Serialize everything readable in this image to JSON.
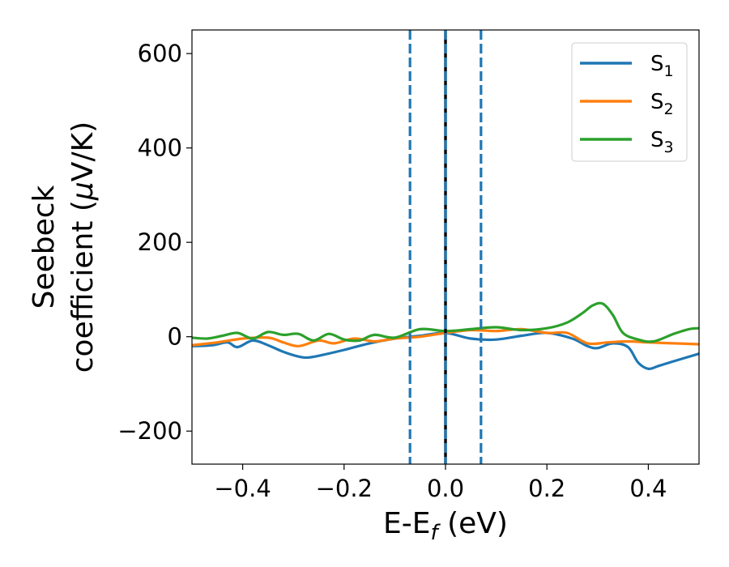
{
  "chart_data": {
    "type": "line",
    "title": "",
    "xlabel": {
      "main": "E-E",
      "sub": "f",
      "tail": " (eV)"
    },
    "ylabel": {
      "line1": "Seebeck",
      "line2_prefix": "coefficient  (",
      "line2_mu": "μ",
      "line2_suffix": "V/K)"
    },
    "xlim": [
      -0.5,
      0.5
    ],
    "ylim": [
      -270,
      650
    ],
    "xticks": [
      -0.4,
      -0.2,
      0.0,
      0.2,
      0.4
    ],
    "xtick_labels": [
      "−0.4",
      "−0.2",
      "0.0",
      "0.2",
      "0.4"
    ],
    "yticks": [
      -200,
      0,
      200,
      400,
      600
    ],
    "ytick_labels": [
      "−200",
      "0",
      "200",
      "400",
      "600"
    ],
    "grid": false,
    "legend_position": "top-right",
    "vlines": [
      {
        "x": -0.07,
        "style": "dashed",
        "color": "#1f77b4"
      },
      {
        "x": 0.0,
        "style": "solid",
        "color": "#000000"
      },
      {
        "x": 0.0,
        "style": "dashed",
        "color": "#1f77b4"
      },
      {
        "x": 0.07,
        "style": "dashed",
        "color": "#1f77b4"
      }
    ],
    "series": [
      {
        "name": "S",
        "sub": "1",
        "color": "#1f77b4",
        "x": [
          -0.5,
          -0.46,
          -0.43,
          -0.41,
          -0.38,
          -0.35,
          -0.32,
          -0.29,
          -0.27,
          -0.24,
          -0.2,
          -0.15,
          -0.1,
          -0.05,
          0.0,
          0.05,
          0.1,
          0.15,
          0.2,
          0.25,
          0.28,
          0.3,
          0.33,
          0.36,
          0.38,
          0.4,
          0.42,
          0.45,
          0.5
        ],
        "y": [
          -20,
          -18,
          -12,
          -22,
          -8,
          -18,
          -32,
          -42,
          -44,
          -38,
          -28,
          -14,
          -4,
          2,
          8,
          -4,
          -6,
          2,
          8,
          -4,
          -20,
          -24,
          -14,
          -22,
          -55,
          -68,
          -62,
          -52,
          -36
        ]
      },
      {
        "name": "S",
        "sub": "2",
        "color": "#ff7f0e",
        "x": [
          -0.5,
          -0.45,
          -0.4,
          -0.35,
          -0.32,
          -0.29,
          -0.25,
          -0.22,
          -0.18,
          -0.14,
          -0.1,
          -0.05,
          0.0,
          0.05,
          0.1,
          0.15,
          0.2,
          0.24,
          0.28,
          0.32,
          0.36,
          0.4,
          0.45,
          0.5
        ],
        "y": [
          -18,
          -12,
          -4,
          -2,
          -12,
          -20,
          -8,
          -14,
          -4,
          -10,
          -4,
          0,
          8,
          14,
          12,
          16,
          8,
          8,
          -14,
          -12,
          -10,
          -12,
          -14,
          -16
        ]
      },
      {
        "name": "S",
        "sub": "3",
        "color": "#2ca02c",
        "x": [
          -0.5,
          -0.47,
          -0.44,
          -0.41,
          -0.38,
          -0.35,
          -0.32,
          -0.29,
          -0.26,
          -0.23,
          -0.2,
          -0.17,
          -0.14,
          -0.1,
          -0.05,
          0.0,
          0.05,
          0.1,
          0.15,
          0.2,
          0.24,
          0.27,
          0.29,
          0.31,
          0.33,
          0.35,
          0.38,
          0.41,
          0.45,
          0.48,
          0.5
        ],
        "y": [
          -2,
          -4,
          2,
          8,
          -4,
          10,
          4,
          6,
          -8,
          6,
          -6,
          -8,
          4,
          -2,
          16,
          12,
          16,
          20,
          14,
          18,
          30,
          50,
          66,
          70,
          46,
          8,
          -6,
          -10,
          6,
          16,
          18
        ]
      }
    ]
  }
}
